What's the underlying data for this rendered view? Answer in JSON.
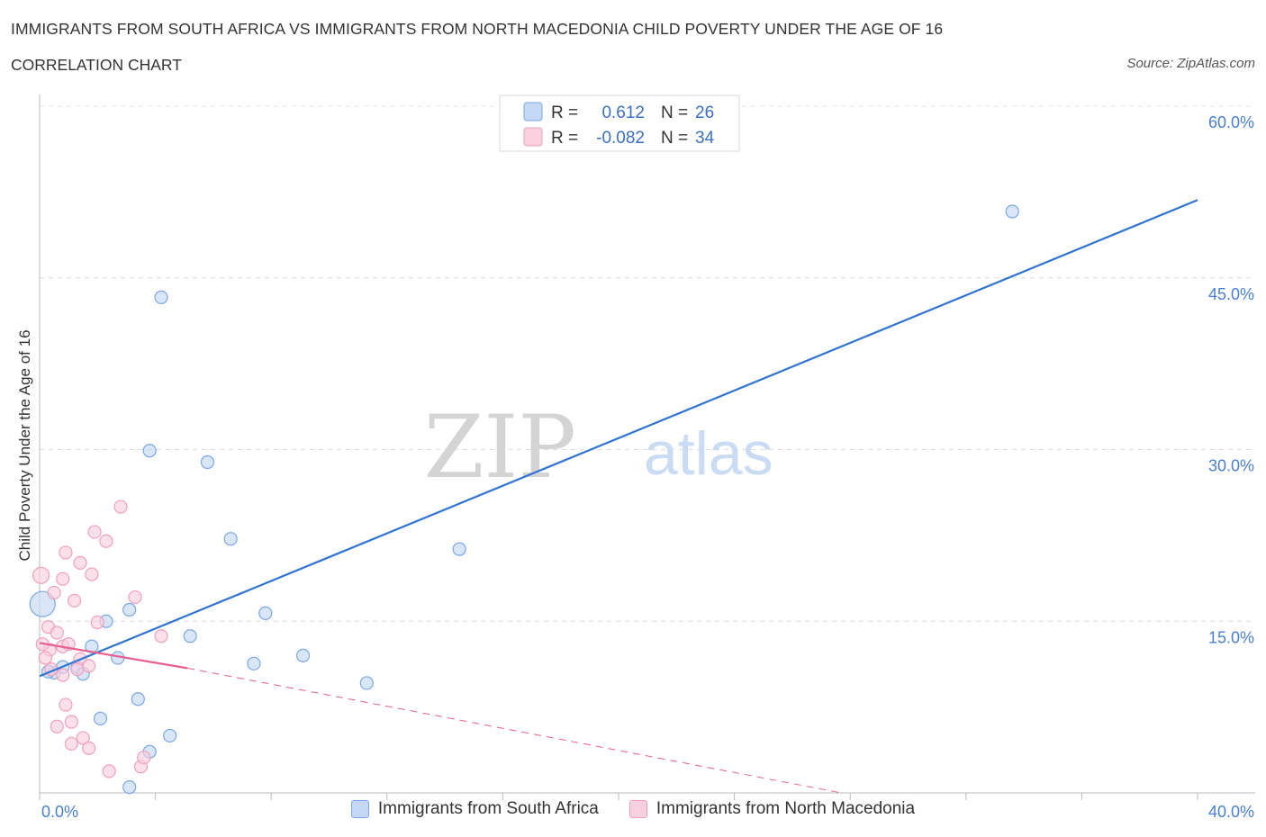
{
  "chart_data": {
    "type": "scatter",
    "title": "IMMIGRANTS FROM SOUTH AFRICA VS IMMIGRANTS FROM NORTH MACEDONIA CHILD POVERTY UNDER THE AGE OF 16",
    "subtitle": "CORRELATION CHART",
    "source": "Source: ZipAtlas.com",
    "ylabel": "Child Poverty Under the Age of 16",
    "xlabel": "",
    "xlim": [
      0,
      40
    ],
    "ylim": [
      0,
      60
    ],
    "x_tick_labels": [
      "0.0%",
      "40.0%"
    ],
    "y_ticks": [
      15,
      30,
      45,
      60
    ],
    "y_tick_labels": [
      "15.0%",
      "30.0%",
      "45.0%",
      "60.0%"
    ],
    "watermark": {
      "zip": "ZIP",
      "atlas": "atlas"
    },
    "legend": [
      {
        "r_label": "R =",
        "r_value": "0.612",
        "n_label": "N =",
        "n_value": "26"
      },
      {
        "r_label": "R =",
        "r_value": "-0.082",
        "n_label": "N =",
        "n_value": "34"
      }
    ],
    "series": [
      {
        "name": "Immigrants from South Africa",
        "color": "#7aa7e8",
        "fill": "#c5d8f5",
        "line_color": "#2f74d0",
        "trend": {
          "x0": 0,
          "y0": 10.2,
          "x1": 40,
          "y1": 51.8,
          "dashed_from": null
        },
        "points": [
          [
            0.1,
            16.5,
            28
          ],
          [
            0.5,
            10.5,
            14
          ],
          [
            0.8,
            11.0,
            14
          ],
          [
            1.3,
            11.0,
            14
          ],
          [
            1.5,
            10.4,
            14
          ],
          [
            2.3,
            15.0,
            14
          ],
          [
            1.8,
            12.8,
            14
          ],
          [
            2.7,
            11.8,
            14
          ],
          [
            2.1,
            6.5,
            14
          ],
          [
            3.1,
            16.0,
            14
          ],
          [
            3.4,
            8.2,
            14
          ],
          [
            3.8,
            3.6,
            14
          ],
          [
            4.2,
            43.3,
            14
          ],
          [
            3.8,
            29.9,
            14
          ],
          [
            5.8,
            28.9,
            14
          ],
          [
            6.6,
            22.2,
            14
          ],
          [
            5.2,
            13.7,
            14
          ],
          [
            7.8,
            15.7,
            14
          ],
          [
            7.4,
            11.3,
            14
          ],
          [
            9.1,
            12.0,
            14
          ],
          [
            11.3,
            9.6,
            14
          ],
          [
            14.5,
            21.3,
            14
          ],
          [
            33.6,
            50.8,
            14
          ],
          [
            4.5,
            5.0,
            14
          ],
          [
            3.1,
            0.5,
            14
          ],
          [
            0.3,
            10.6,
            14
          ]
        ]
      },
      {
        "name": "Immigrants from North Macedonia",
        "color": "#f0a0bc",
        "fill": "#f9d0de",
        "line_color": "#e8608f",
        "trend": {
          "x0": 0,
          "y0": 13.1,
          "x1": 5.1,
          "y1": 10.9,
          "dashed_to_x": 27.7,
          "dashed_to_y": 0.0
        },
        "points": [
          [
            0.05,
            19.0,
            18
          ],
          [
            0.3,
            14.5,
            14
          ],
          [
            0.35,
            12.5,
            14
          ],
          [
            0.6,
            14.0,
            14
          ],
          [
            0.8,
            12.8,
            14
          ],
          [
            0.9,
            21.0,
            14
          ],
          [
            0.8,
            18.7,
            14
          ],
          [
            1.2,
            16.8,
            14
          ],
          [
            1.4,
            20.1,
            14
          ],
          [
            1.8,
            19.1,
            14
          ],
          [
            2.3,
            22.0,
            14
          ],
          [
            1.9,
            22.8,
            14
          ],
          [
            2.8,
            25.0,
            14
          ],
          [
            3.3,
            17.1,
            14
          ],
          [
            2.0,
            14.9,
            14
          ],
          [
            1.0,
            13.0,
            14
          ],
          [
            1.4,
            11.7,
            14
          ],
          [
            0.8,
            10.3,
            14
          ],
          [
            0.4,
            10.8,
            14
          ],
          [
            0.9,
            7.7,
            14
          ],
          [
            1.1,
            6.2,
            14
          ],
          [
            0.6,
            5.8,
            14
          ],
          [
            1.1,
            4.3,
            14
          ],
          [
            1.5,
            4.8,
            14
          ],
          [
            1.7,
            3.9,
            14
          ],
          [
            2.4,
            1.9,
            14
          ],
          [
            3.5,
            2.3,
            14
          ],
          [
            3.6,
            3.1,
            14
          ],
          [
            4.2,
            13.7,
            14
          ],
          [
            0.2,
            11.8,
            14
          ],
          [
            0.5,
            17.5,
            14
          ],
          [
            1.3,
            10.8,
            14
          ],
          [
            0.1,
            13.0,
            14
          ],
          [
            1.7,
            11.1,
            14
          ]
        ]
      }
    ]
  }
}
